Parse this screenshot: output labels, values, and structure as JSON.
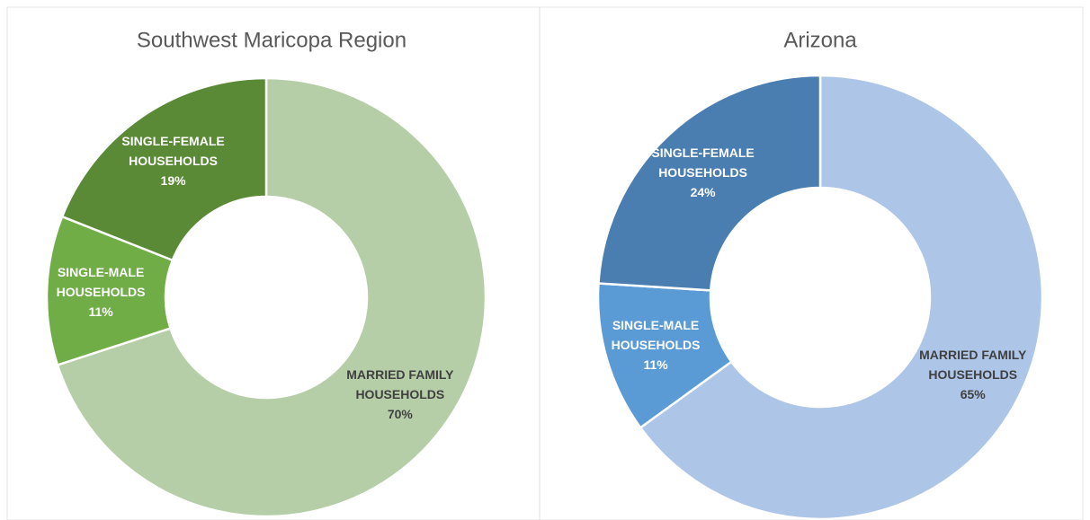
{
  "chart_data": [
    {
      "type": "pie",
      "title": "Southwest Maricopa Region",
      "categories": [
        "MARRIED FAMILY HOUSEHOLDS",
        "SINGLE-MALE HOUSEHOLDS",
        "SINGLE-FEMALE HOUSEHOLDS"
      ],
      "values": [
        70,
        11,
        19
      ],
      "value_labels": [
        "70%",
        "11%",
        "19%"
      ],
      "colors": [
        "#b5cea8",
        "#70ad47",
        "#5a8a36"
      ]
    },
    {
      "type": "pie",
      "title": "Arizona",
      "categories": [
        "MARRIED FAMILY HOUSEHOLDS",
        "SINGLE-MALE HOUSEHOLDS",
        "SINGLE-FEMALE HOUSEHOLDS"
      ],
      "values": [
        65,
        11,
        24
      ],
      "value_labels": [
        "65%",
        "11%",
        "24%"
      ],
      "colors": [
        "#adc5e7",
        "#5b9bd5",
        "#4a7eb0"
      ]
    }
  ]
}
